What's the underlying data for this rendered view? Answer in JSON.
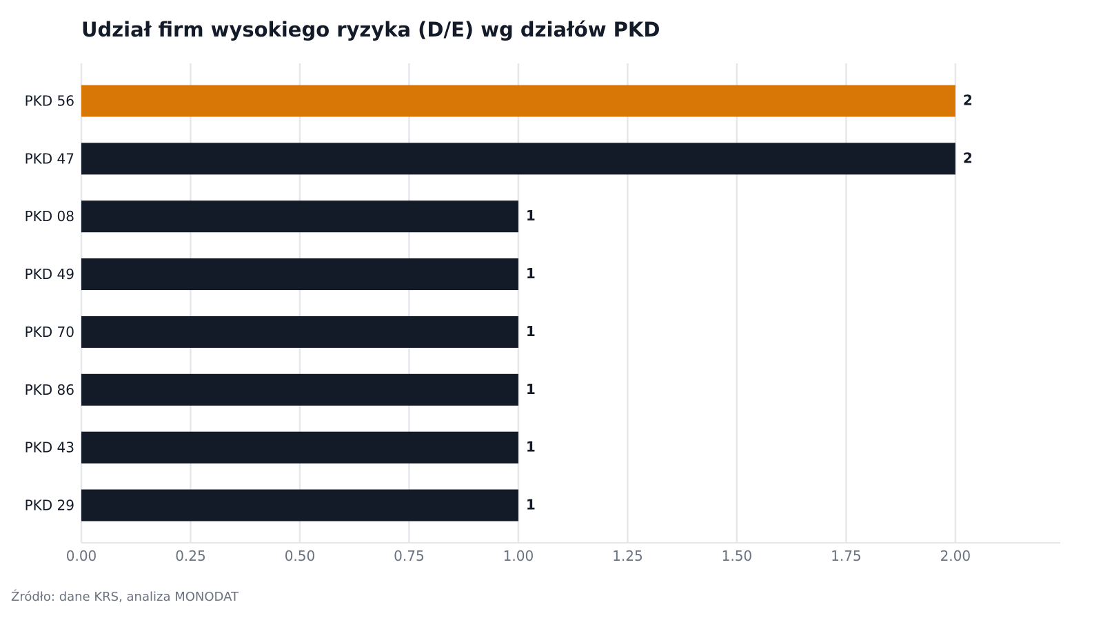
{
  "chart_data": {
    "type": "bar",
    "orientation": "horizontal",
    "title": "Udział firm wysokiego ryzyka (D/E) wg działów PKD",
    "categories": [
      "PKD 56",
      "PKD 47",
      "PKD 08",
      "PKD 49",
      "PKD 70",
      "PKD 86",
      "PKD 43",
      "PKD 29"
    ],
    "values": [
      2,
      2,
      1,
      1,
      1,
      1,
      1,
      1
    ],
    "value_labels": [
      "2",
      "2",
      "1",
      "1",
      "1",
      "1",
      "1",
      "1"
    ],
    "highlight_index": 0,
    "xlim": [
      0,
      2.24
    ],
    "xticks": [
      0,
      0.25,
      0.5,
      0.75,
      1.0,
      1.25,
      1.5,
      1.75,
      2.0
    ],
    "xtick_labels": [
      "0.00",
      "0.25",
      "0.50",
      "0.75",
      "1.00",
      "1.25",
      "1.50",
      "1.75",
      "2.00"
    ],
    "xlabel": "",
    "ylabel": "",
    "grid": "vertical",
    "legend": "none",
    "colors": {
      "bar": "#131a28",
      "highlight": "#d97706",
      "grid": "#e5e7eb",
      "tick_text": "#6b7280",
      "text": "#131a28"
    }
  },
  "source_note": "Źródło: dane KRS, analiza MONODAT"
}
